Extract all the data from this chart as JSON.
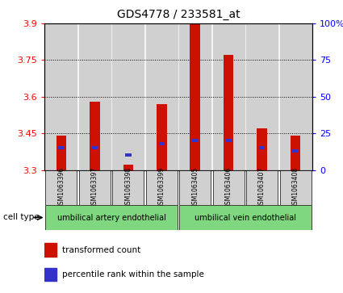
{
  "title": "GDS4778 / 233581_at",
  "samples": [
    "GSM1063396",
    "GSM1063397",
    "GSM1063398",
    "GSM1063399",
    "GSM1063405",
    "GSM1063406",
    "GSM1063407",
    "GSM1063408"
  ],
  "transformed_counts": [
    3.44,
    3.58,
    3.32,
    3.57,
    3.9,
    3.77,
    3.47,
    3.44
  ],
  "percentile_ranks_pct": [
    15,
    15,
    10,
    18,
    20,
    20,
    15,
    13
  ],
  "ymin": 3.3,
  "ymax": 3.9,
  "yticks": [
    3.3,
    3.45,
    3.6,
    3.75,
    3.9
  ],
  "right_yticks": [
    0,
    25,
    50,
    75,
    100
  ],
  "cell_type_groups": [
    {
      "label": "umbilical artery endothelial",
      "start": 0,
      "end": 3,
      "color": "#7FD87F"
    },
    {
      "label": "umbilical vein endothelial",
      "start": 4,
      "end": 7,
      "color": "#7FD87F"
    }
  ],
  "bar_color": "#CC1100",
  "blue_color": "#3333CC",
  "background_color": "#ffffff",
  "bar_bg_color": "#d0d0d0",
  "cell_type_label": "cell type",
  "legend_items": [
    {
      "label": "transformed count",
      "color": "#CC1100"
    },
    {
      "label": "percentile rank within the sample",
      "color": "#3333CC"
    }
  ]
}
